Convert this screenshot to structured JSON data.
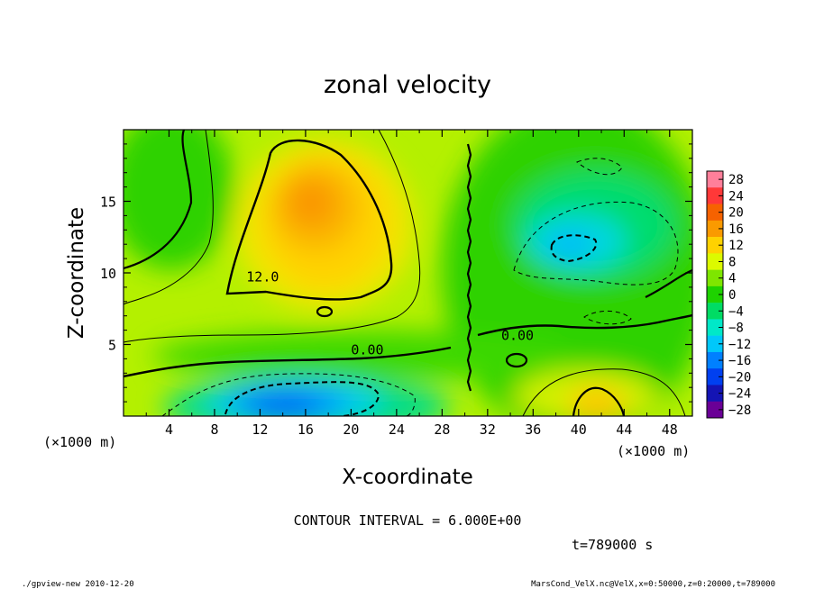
{
  "chart_data": {
    "type": "heatmap",
    "title": "zonal velocity",
    "xlabel": "X-coordinate",
    "ylabel": "Z-coordinate",
    "x_unit": "(×1000 m)",
    "y_unit": "(×1000 m)",
    "xlim": [
      0,
      50
    ],
    "ylim": [
      0,
      20
    ],
    "x_ticks": [
      4,
      8,
      12,
      16,
      20,
      24,
      28,
      32,
      36,
      40,
      44,
      48
    ],
    "y_ticks": [
      5,
      10,
      15
    ],
    "contour_labels": [
      {
        "text": "12.0",
        "x": 10.8,
        "z": 9.4
      },
      {
        "text": "0.00",
        "x": 20.0,
        "z": 4.3
      },
      {
        "text": "0.00",
        "x": 33.2,
        "z": 5.3
      }
    ],
    "colorbar": {
      "levels": [
        28,
        24,
        20,
        16,
        12,
        8,
        4,
        0,
        -4,
        -8,
        -12,
        -16,
        -20,
        -24,
        -28
      ],
      "colors": [
        "#ff7f9a",
        "#ff3838",
        "#f66200",
        "#fa9a00",
        "#ffd200",
        "#dcfa00",
        "#7ee600",
        "#1ed200",
        "#00dc64",
        "#00e8c8",
        "#00c8fa",
        "#0080ff",
        "#0040f0",
        "#1414b4",
        "#6a0096"
      ]
    },
    "contour_interval": "CONTOUR INTERVAL = 6.000E+00",
    "time": "t=789000 s",
    "features": [
      {
        "name": "positive maximum",
        "x": 17,
        "z": 14,
        "value": 16
      },
      {
        "name": "negative minimum",
        "x": 16,
        "z": 1.5,
        "value": -17
      },
      {
        "name": "negative minimum",
        "x": 39,
        "z": 12,
        "value": -10
      },
      {
        "name": "positive maximum",
        "x": 41,
        "z": 1,
        "value": 14
      }
    ]
  },
  "footer": {
    "left": "./gpview-new  2010-12-20",
    "right": "MarsCond_VelX.nc@VelX,x=0:50000,z=0:20000,t=789000"
  }
}
